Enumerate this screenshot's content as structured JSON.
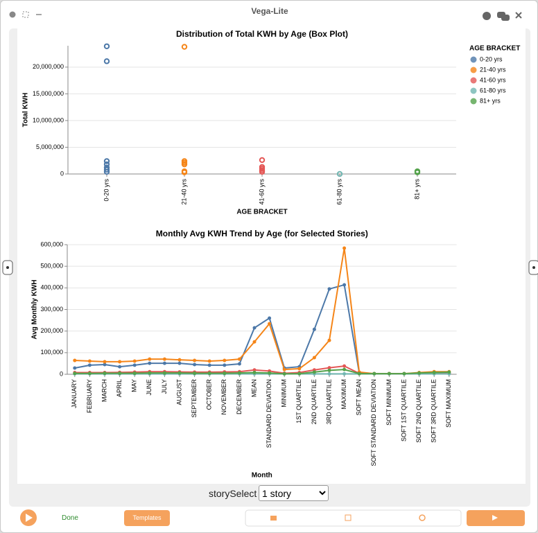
{
  "window": {
    "title": "Vega-Lite"
  },
  "chart_data": [
    {
      "type": "box",
      "title": "Distribution of Total KWH by Age (Box Plot)",
      "x_label": "AGE BRACKET",
      "y_label": "Total KWH",
      "categories": [
        "0-20 yrs",
        "21-40 yrs",
        "41-60 yrs",
        "61-80 yrs",
        "81+ yrs"
      ],
      "series": [
        {
          "name": "0-20 yrs",
          "color": "#4c78a8",
          "values": [
            23900000,
            21100000,
            2400000,
            1800000,
            1200000,
            800000,
            400000
          ]
        },
        {
          "name": "21-40 yrs",
          "color": "#f58518",
          "values": [
            23800000,
            2400000,
            2100000,
            1800000,
            500000,
            300000
          ]
        },
        {
          "name": "41-60 yrs",
          "color": "#e45756",
          "values": [
            2600000,
            1300000,
            1000000,
            700000,
            400000
          ]
        },
        {
          "name": "61-80 yrs",
          "color": "#72b7b2",
          "values": [
            0
          ]
        },
        {
          "name": "81+ yrs",
          "color": "#54a24b",
          "values": [
            500000,
            300000
          ]
        }
      ],
      "ylim": [
        0,
        24000000
      ],
      "yticks": [
        0,
        {
          "value": 5000000,
          "label": "5,000,000"
        },
        {
          "value": 10000000,
          "label": "10,000,000"
        },
        {
          "value": 15000000,
          "label": "15,000,000"
        },
        {
          "value": 20000000,
          "label": "20,000,000"
        }
      ],
      "grid": true,
      "legend_title": "AGE BRACKET",
      "legend": "right"
    },
    {
      "type": "line",
      "title": "Monthly Avg KWH Trend by Age (for Selected Stories)",
      "x_label": "Month",
      "y_label": "Avg Monthly KWH",
      "categories": [
        "JANUARY",
        "FEBRUARY",
        "MARCH",
        "APRIL",
        "MAY",
        "JUNE",
        "JULY",
        "AUGUST",
        "SEPTEMBER",
        "OCTOBER",
        "NOVEMBER",
        "DECEMBER",
        "MEAN",
        "STANDARD DEVIATION",
        "MINIMUM",
        "1ST QUARTILE",
        "2ND QUARTILE",
        "3RD QUARTILE",
        "MAXIMUM",
        "SOFT MEAN",
        "SOFT STANDARD DEVIATION",
        "SOFT MINIMUM",
        "SOFT 1ST QUARTILE",
        "SOFT 2ND QUARTILE",
        "SOFT 3RD QUARTILE",
        "SOFT MAXIMUM"
      ],
      "series": [
        {
          "color": "#4c78a8",
          "values": [
            29000,
            42000,
            45000,
            35000,
            42000,
            51000,
            51000,
            51000,
            45000,
            42000,
            42000,
            48000,
            215000,
            260000,
            29000,
            35000,
            208000,
            395000,
            414000,
            6000,
            3000,
            3000,
            3000,
            5000,
            6000,
            5000
          ]
        },
        {
          "color": "#f58518",
          "values": [
            64000,
            61000,
            58000,
            58000,
            61000,
            70000,
            70000,
            67000,
            64000,
            61000,
            64000,
            70000,
            150000,
            234000,
            22000,
            26000,
            77000,
            157000,
            584000,
            10000,
            3000,
            3000,
            3000,
            8000,
            12000,
            12000
          ]
        },
        {
          "color": "#e45756",
          "values": [
            8000,
            8000,
            8000,
            9000,
            10000,
            12000,
            12000,
            11000,
            10000,
            10000,
            11000,
            12000,
            20000,
            15000,
            5000,
            8000,
            20000,
            30000,
            38000,
            4000,
            3000,
            3000,
            3000,
            4000,
            5000,
            5000
          ]
        },
        {
          "color": "#72b7b2",
          "values": [
            2000,
            2000,
            2000,
            2000,
            2000,
            2000,
            2000,
            2000,
            2000,
            2000,
            2000,
            2000,
            2000,
            2000,
            2000,
            2000,
            2000,
            2000,
            2000,
            2000,
            2000,
            2000,
            2000,
            2000,
            2000,
            2000
          ]
        },
        {
          "color": "#54a24b",
          "values": [
            4000,
            4000,
            5000,
            5000,
            5000,
            6000,
            6000,
            6000,
            5000,
            5000,
            5000,
            6000,
            8000,
            6000,
            2000,
            3000,
            10000,
            18000,
            22000,
            3000,
            3000,
            3000,
            3000,
            6000,
            8000,
            10000
          ]
        }
      ],
      "ylim": [
        0,
        600000
      ],
      "yticks": [
        0,
        {
          "value": 100000,
          "label": "100,000"
        },
        {
          "value": 200000,
          "label": "200,000"
        },
        {
          "value": 300000,
          "label": "300,000"
        },
        {
          "value": 400000,
          "label": "400,000"
        },
        {
          "value": 500000,
          "label": "500,000"
        },
        {
          "value": 600000,
          "label": "600,000"
        }
      ],
      "grid": true
    }
  ],
  "controls": {
    "story_select_label": "storySelect",
    "story_select_value": "1 story"
  },
  "toolbar": {
    "done": "Done",
    "templates": "Templates"
  }
}
